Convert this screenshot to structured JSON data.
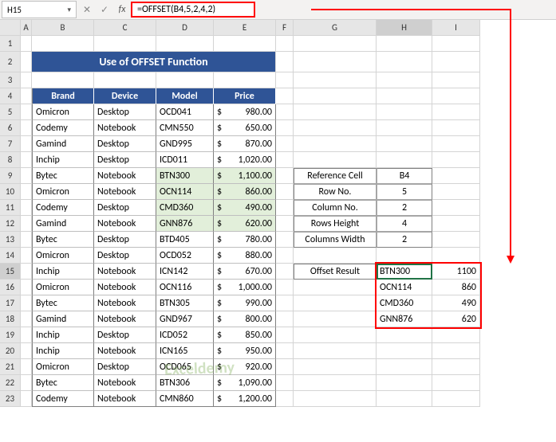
{
  "cellRef": "H15",
  "formula": "=OFFSET(B4,5,2,4,2)",
  "title": "Use of OFFSET Function",
  "columns": [
    "A",
    "B",
    "C",
    "D",
    "E",
    "F",
    "G",
    "H",
    "I"
  ],
  "table": {
    "headers": [
      "Brand",
      "Device",
      "Model",
      "Price"
    ],
    "rows": [
      {
        "brand": "Omicron",
        "device": "Desktop",
        "model": "OCD041",
        "price": "980.00",
        "hl": false
      },
      {
        "brand": "Codemy",
        "device": "Notebook",
        "model": "CMN550",
        "price": "650.00",
        "hl": false
      },
      {
        "brand": "Gamind",
        "device": "Desktop",
        "model": "GND995",
        "price": "870.00",
        "hl": false
      },
      {
        "brand": "Inchip",
        "device": "Desktop",
        "model": "ICD011",
        "price": "1,020.00",
        "hl": false
      },
      {
        "brand": "Bytec",
        "device": "Notebook",
        "model": "BTN300",
        "price": "1,100.00",
        "hl": true
      },
      {
        "brand": "Omicron",
        "device": "Notebook",
        "model": "OCN114",
        "price": "860.00",
        "hl": true
      },
      {
        "brand": "Codemy",
        "device": "Desktop",
        "model": "CMD360",
        "price": "490.00",
        "hl": true
      },
      {
        "brand": "Gamind",
        "device": "Notebook",
        "model": "GNN876",
        "price": "620.00",
        "hl": true
      },
      {
        "brand": "Bytec",
        "device": "Desktop",
        "model": "BTD405",
        "price": "780.00",
        "hl": false
      },
      {
        "brand": "Omicron",
        "device": "Desktop",
        "model": "OCD052",
        "price": "880.00",
        "hl": false
      },
      {
        "brand": "Inchip",
        "device": "Notebook",
        "model": "ICN142",
        "price": "670.00",
        "hl": false
      },
      {
        "brand": "Omicron",
        "device": "Notebook",
        "model": "OCN116",
        "price": "1,000.00",
        "hl": false
      },
      {
        "brand": "Bytec",
        "device": "Notebook",
        "model": "BTN305",
        "price": "990.00",
        "hl": false
      },
      {
        "brand": "Gamind",
        "device": "Notebook",
        "model": "GND967",
        "price": "800.00",
        "hl": false
      },
      {
        "brand": "Inchip",
        "device": "Desktop",
        "model": "ICD052",
        "price": "850.00",
        "hl": false
      },
      {
        "brand": "Inchip",
        "device": "Notebook",
        "model": "ICN165",
        "price": "950.00",
        "hl": false
      },
      {
        "brand": "Omicron",
        "device": "Desktop",
        "model": "OCD065",
        "price": "920.00",
        "hl": false
      },
      {
        "brand": "Bytec",
        "device": "Notebook",
        "model": "BTN306",
        "price": "1,090.00",
        "hl": false
      },
      {
        "brand": "Codemy",
        "device": "Notebook",
        "model": "CMN860",
        "price": "1,200.00",
        "hl": false
      }
    ]
  },
  "params": [
    {
      "label": "Reference Cell",
      "value": "B4"
    },
    {
      "label": "Row No.",
      "value": "5"
    },
    {
      "label": "Column No.",
      "value": "2"
    },
    {
      "label": "Rows Height",
      "value": "4"
    },
    {
      "label": "Columns Width",
      "value": "2"
    }
  ],
  "resultLabel": "Offset Result",
  "result": [
    {
      "m": "BTN300",
      "p": "1100"
    },
    {
      "m": "OCN114",
      "p": "860"
    },
    {
      "m": "CMD360",
      "p": "490"
    },
    {
      "m": "GNN876",
      "p": "620"
    }
  ],
  "currency": "$",
  "colors": {
    "header_bg": "#2f5496",
    "highlight_bg": "#e2efda",
    "callout": "#ff0000",
    "selection": "#217346"
  }
}
